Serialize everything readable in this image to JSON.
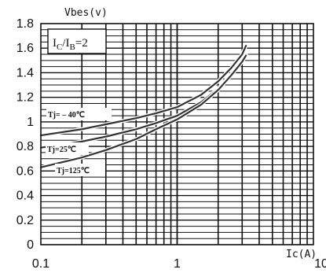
{
  "chart_data": {
    "type": "line",
    "ylabel": "Vbes(v)",
    "xlabel": "Ic(A)",
    "xscale": "log",
    "xlim": [
      0.1,
      10
    ],
    "ylim": [
      0,
      1.8
    ],
    "x_ticks": [
      "0.1",
      "1",
      "10"
    ],
    "y_ticks": [
      "0",
      "0.2",
      "0.4",
      "0.6",
      "0.8",
      "1",
      "1.2",
      "1.4",
      "1.6",
      "1.8"
    ],
    "grid": true,
    "condition": {
      "main_left": "I",
      "sub_left": "C",
      "slash": "/I",
      "sub_right": "B",
      "value": "=2"
    },
    "series": [
      {
        "name": "Tj= – 40℃",
        "x": [
          0.1,
          0.2,
          0.3,
          0.5,
          0.7,
          1.0,
          1.5,
          2.0,
          2.5,
          3.0,
          3.2
        ],
        "y": [
          0.89,
          0.94,
          0.98,
          1.03,
          1.07,
          1.12,
          1.22,
          1.33,
          1.44,
          1.55,
          1.62
        ]
      },
      {
        "name": "Tj=25℃",
        "x": [
          0.1,
          0.2,
          0.3,
          0.5,
          0.7,
          1.0,
          1.5,
          2.0,
          2.5,
          3.0,
          3.2
        ],
        "y": [
          0.79,
          0.84,
          0.88,
          0.94,
          0.99,
          1.05,
          1.16,
          1.27,
          1.39,
          1.5,
          1.55
        ]
      },
      {
        "name": "Tj=125℃",
        "x": [
          0.1,
          0.2,
          0.3,
          0.5,
          0.7,
          1.0,
          1.5,
          2.0,
          2.5,
          3.0,
          3.2
        ],
        "y": [
          0.63,
          0.71,
          0.77,
          0.86,
          0.94,
          1.02,
          1.14,
          1.26,
          1.38,
          1.49,
          1.54
        ]
      }
    ]
  }
}
